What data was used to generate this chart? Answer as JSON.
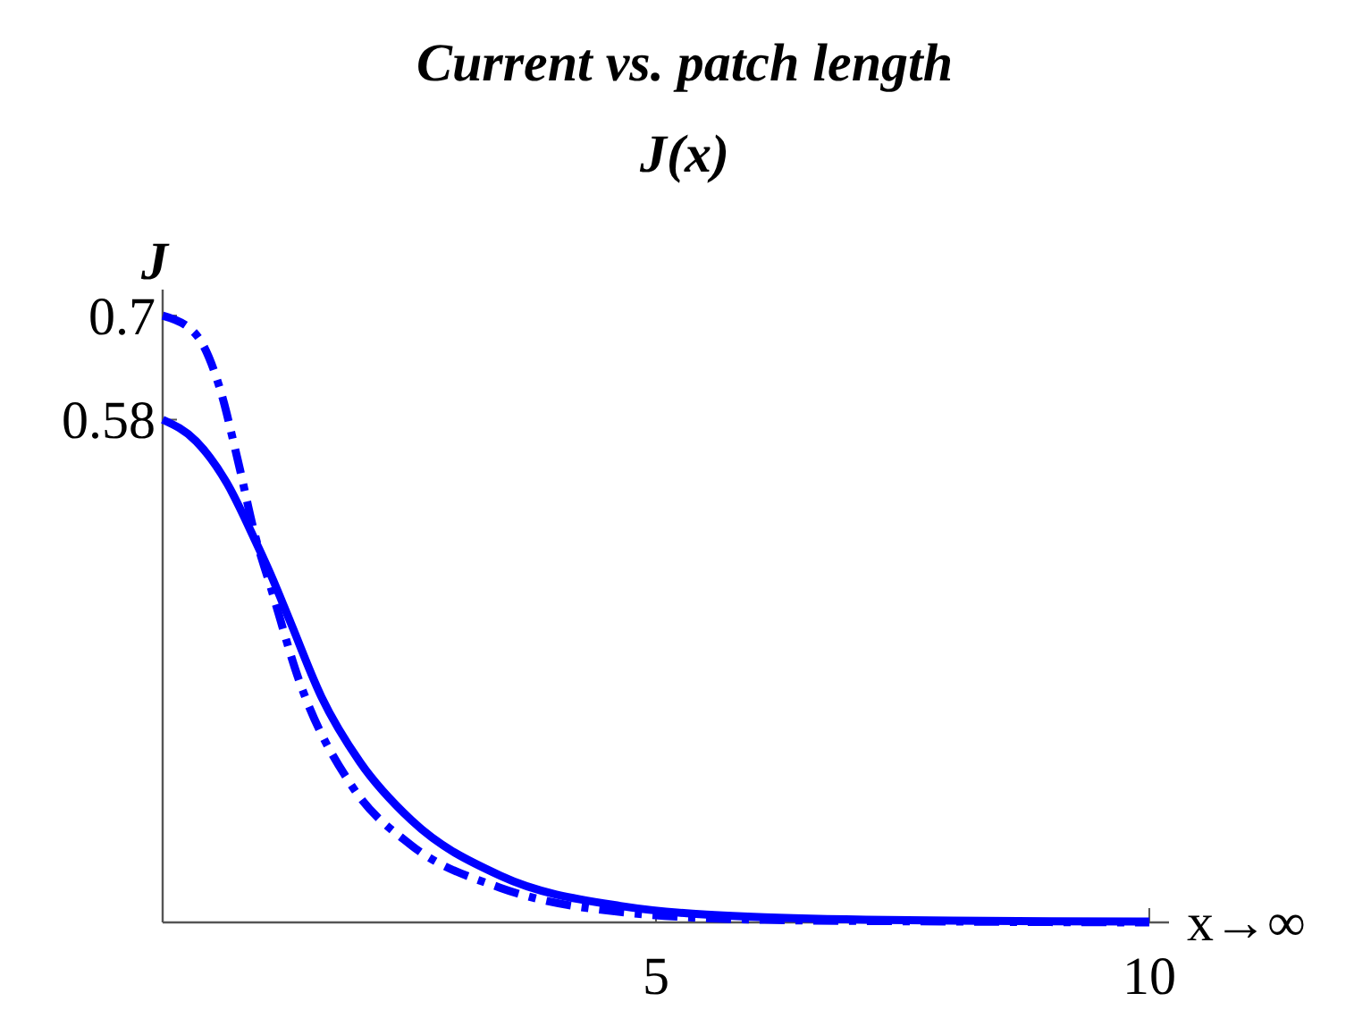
{
  "chart_data": {
    "type": "line",
    "title": "Current vs. patch length",
    "subtitle": "J(x)",
    "xlabel": "x→∞",
    "ylabel": "J",
    "xlim": [
      0,
      10.2
    ],
    "ylim": [
      0,
      0.73
    ],
    "xticks": [
      5,
      10
    ],
    "yticks": [
      0.58,
      0.7
    ],
    "marker": "none",
    "series": [
      {
        "color": "#0000ff",
        "line_style": "solid",
        "x": [
          0,
          0.34,
          0.65,
          0.94,
          1.1,
          1.3,
          1.61,
          2.0,
          2.52,
          3.42,
          4.64,
          6.1,
          8,
          10
        ],
        "values": [
          0.58,
          0.555,
          0.507,
          0.44,
          0.4,
          0.345,
          0.26,
          0.185,
          0.118,
          0.054,
          0.019,
          0.006,
          0.002,
          0.001
        ]
      },
      {
        "color": "#0000ff",
        "line_style": "dashed",
        "x": [
          0,
          0.34,
          0.58,
          0.76,
          0.94,
          1.1,
          1.38,
          1.92,
          2.52,
          3.42,
          4.64,
          6.1,
          8,
          10
        ],
        "values": [
          0.7,
          0.678,
          0.616,
          0.534,
          0.445,
          0.385,
          0.28,
          0.157,
          0.089,
          0.04,
          0.012,
          0.003,
          0.001,
          0
        ]
      }
    ]
  }
}
